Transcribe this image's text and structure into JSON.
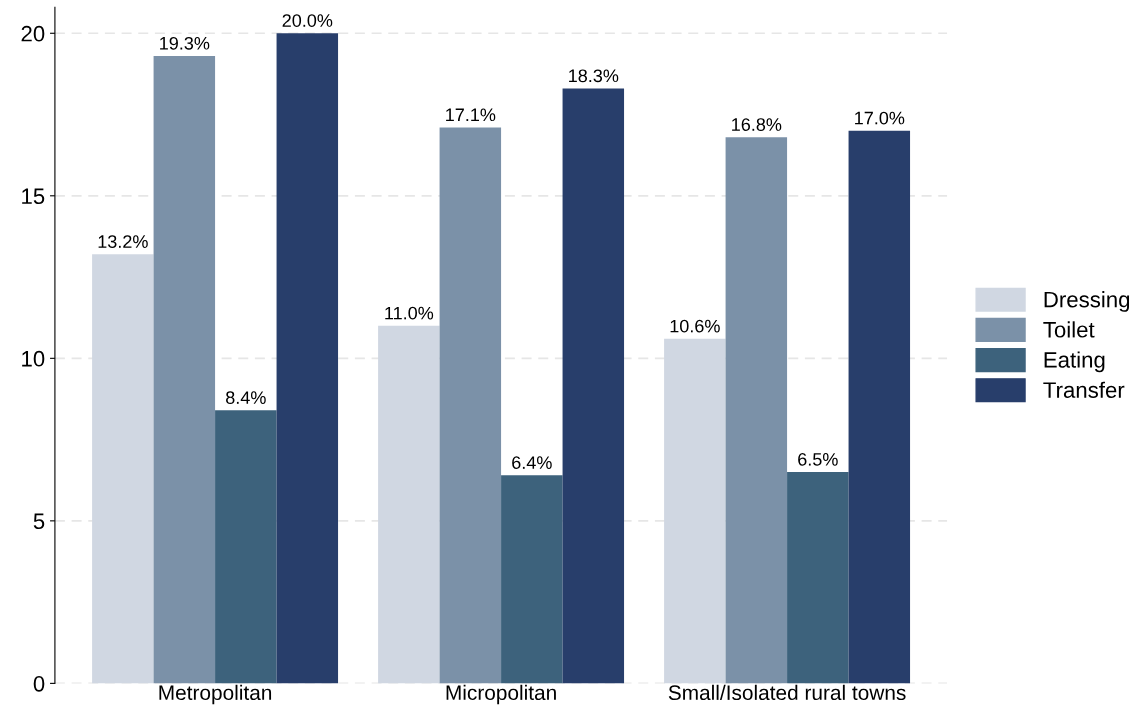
{
  "chart_data": {
    "type": "bar",
    "categories": [
      "Metropolitan",
      "Micropolitan",
      "Small/Isolated rural towns"
    ],
    "series": [
      {
        "name": "Dressing",
        "color": "#d0d7e2",
        "values": [
          13.2,
          11.0,
          10.6
        ],
        "value_labels": [
          "13.2%",
          "11.0%",
          "10.6%"
        ]
      },
      {
        "name": "Toilet",
        "color": "#7b91a8",
        "values": [
          19.3,
          17.1,
          16.8
        ],
        "value_labels": [
          "19.3%",
          "17.1%",
          "16.8%"
        ]
      },
      {
        "name": "Eating",
        "color": "#3d627c",
        "values": [
          8.4,
          6.4,
          6.5
        ],
        "value_labels": [
          "8.4%",
          "6.4%",
          "6.5%"
        ]
      },
      {
        "name": "Transfer",
        "color": "#283e6b",
        "values": [
          20.0,
          18.3,
          17.0
        ],
        "value_labels": [
          "20.0%",
          "18.3%",
          "17.0%"
        ]
      }
    ],
    "ylim": [
      0,
      20.8
    ],
    "yticks": [
      0,
      5,
      10,
      15,
      20
    ],
    "grid": "y",
    "legend": "right"
  }
}
